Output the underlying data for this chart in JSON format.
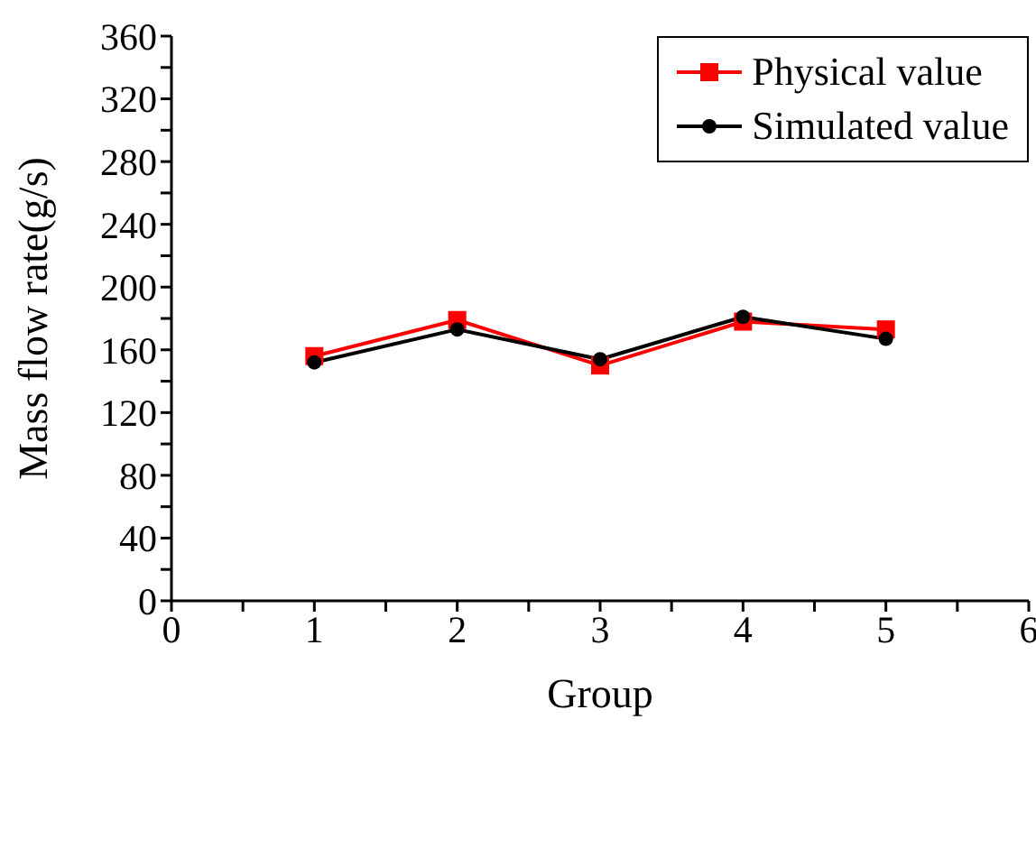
{
  "chart_data": {
    "type": "line",
    "xlabel": "Group",
    "ylabel": "Mass flow rate(g/s)",
    "x": [
      1,
      2,
      3,
      4,
      5
    ],
    "series": [
      {
        "name": "Physical value",
        "color": "#ff0000",
        "marker": "square",
        "values": [
          156,
          179,
          150,
          178,
          173
        ]
      },
      {
        "name": "Simulated value",
        "color": "#000000",
        "marker": "circle",
        "values": [
          152,
          173,
          154,
          181,
          167
        ]
      }
    ],
    "xlim": [
      0,
      6
    ],
    "xticks": [
      0,
      {
        "value": 0.5,
        "label": null
      },
      1,
      {
        "value": 1.5,
        "label": null
      },
      2,
      {
        "value": 2.5,
        "label": null
      },
      3,
      {
        "value": 3.5,
        "label": null
      },
      4,
      {
        "value": 4.5,
        "label": null
      },
      5,
      {
        "value": 5.5,
        "label": null
      },
      6
    ],
    "ylim": [
      0,
      360
    ],
    "yticks": [
      0,
      {
        "value": 20,
        "label": null
      },
      40,
      {
        "value": 60,
        "label": null
      },
      80,
      {
        "value": 100,
        "label": null
      },
      120,
      {
        "value": 140,
        "label": null
      },
      160,
      {
        "value": 180,
        "label": null
      },
      200,
      {
        "value": 220,
        "label": null
      },
      240,
      {
        "value": 260,
        "label": null
      },
      280,
      {
        "value": 300,
        "label": null
      },
      320,
      {
        "value": 340,
        "label": null
      },
      360
    ],
    "grid": false,
    "legend": "top right",
    "line_style": "solid"
  }
}
